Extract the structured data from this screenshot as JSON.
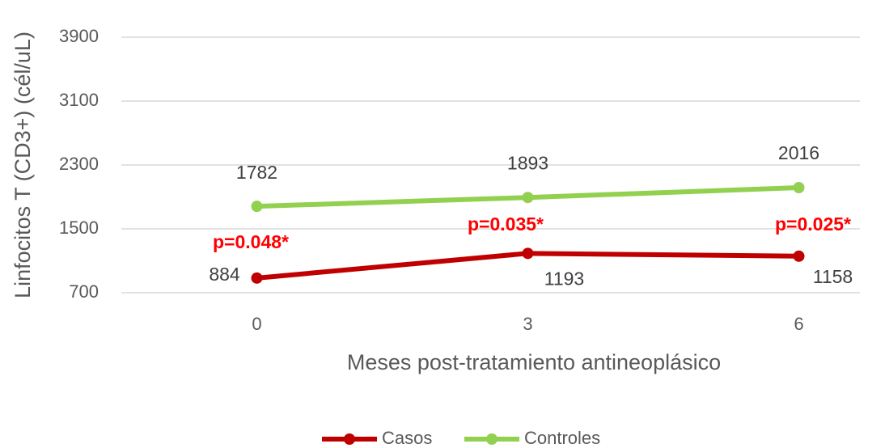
{
  "chart_data": {
    "type": "line",
    "x_label": "Meses post-tratamiento antineoplásico",
    "y_label": "Linfocitos T (CD3+) (cél/uL)",
    "categories": [
      "0",
      "3",
      "6"
    ],
    "series": [
      {
        "name": "Casos",
        "color": "#c00000",
        "values": [
          884,
          1193,
          1158
        ]
      },
      {
        "name": "Controles",
        "color": "#92d050",
        "values": [
          1782,
          1893,
          2016
        ]
      }
    ],
    "annotations": [
      "p=0.048*",
      "p=0.035*",
      "p=0.025*"
    ],
    "ylim": [
      700,
      3900
    ],
    "yticks": [
      700,
      1500,
      2300,
      3100,
      3900
    ],
    "grid": true
  }
}
